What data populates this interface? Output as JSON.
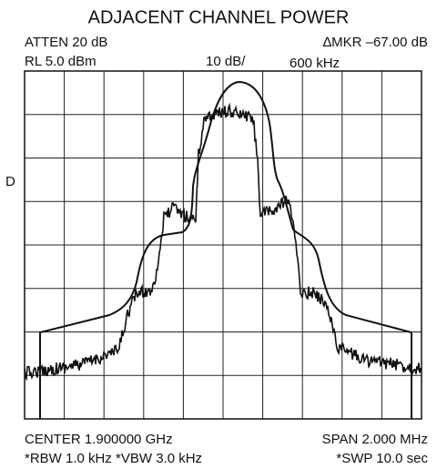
{
  "screen": {
    "title": "ADJACENT CHANNEL POWER",
    "atten": "ATTEN 20 dB",
    "marker": "∆MKR –67.00 dB",
    "ref_level": "RL 5.0 dBm",
    "scale": "10 dB/",
    "marker_freq": "600 kHz",
    "detector": "D",
    "center": "CENTER 1.900000 GHz",
    "span": "SPAN 2.000 MHz",
    "bandwidths": "*RBW 1.0 kHz  *VBW 3.0 kHz",
    "sweep": "*SWP 10.0 sec"
  }
}
